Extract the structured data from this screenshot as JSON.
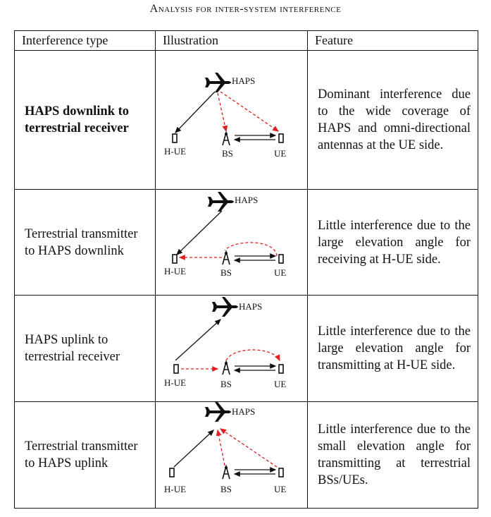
{
  "caption": "Analysis for inter-system interference",
  "headers": [
    "Interference type",
    "Illustration",
    "Feature"
  ],
  "labels": {
    "haps": "HAPS",
    "hue": "H-UE",
    "bs": "BS",
    "ue": "UE"
  },
  "colors": {
    "solid": "#111111",
    "interference": "#e02020"
  },
  "rows": [
    {
      "type": "HAPS downlink to terrestrial receiver",
      "bold": true,
      "feature": "Dominant interference due to the wide coverage of HAPS and omni-directional antennas at the UE side."
    },
    {
      "type": "Terrestrial transmitter to HAPS downlink",
      "bold": false,
      "feature": "Little interference due to the large elevation angle for receiving at H-UE side."
    },
    {
      "type": "HAPS uplink to terrestrial receiver",
      "bold": false,
      "feature": "Little interference due to the large elevation angle for transmitting at H-UE side."
    },
    {
      "type": "Terrestrial transmitter to HAPS uplink",
      "bold": false,
      "feature": "Little interference due to the small elevation angle for transmitting at terrestrial BSs/UEs."
    }
  ]
}
